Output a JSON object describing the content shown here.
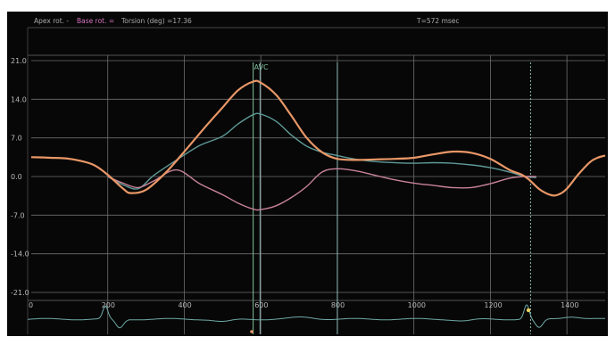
{
  "header": {
    "apex_label": "Apex rot. -",
    "base_label": "Base rot. =",
    "torsion_label": "Torsion (deg) =17.36",
    "time_label": "T=572 msec"
  },
  "colors": {
    "background": "#070707",
    "grid": "#6e6e6e",
    "torsion": "#e99767",
    "apex": "#5e9a98",
    "base": "#c8829a",
    "ecg": "#6fa9a6",
    "marker_avc": "#7fbf9a",
    "marker_cursor": "#8fb8b5",
    "axis_text": "#b9b9b9",
    "base_label": "#d874bf",
    "ecg_dot": "#e8d15a"
  },
  "chart_data": {
    "type": "line",
    "title": "",
    "xlabel": "",
    "ylabel": "",
    "xlim": [
      0,
      1500
    ],
    "ylim": [
      -21.0,
      21.0
    ],
    "x_ticks": [
      200,
      400,
      600,
      800,
      1000,
      1200,
      1400
    ],
    "x_tick_labels": [
      "200",
      "400",
      "600",
      "800",
      "1000",
      "1200",
      "1400"
    ],
    "x_tick_left_label": "0",
    "y_ticks": [
      21.0,
      14.0,
      7.0,
      0.0,
      -7.0,
      -14.0,
      -21.0
    ],
    "y_tick_labels": [
      "21.0",
      "14.0",
      "7.0",
      "0.0",
      "-7.0",
      "-14.0",
      "-21.0"
    ],
    "grid": true,
    "vertical_markers": [
      {
        "x": 580,
        "label": "AVC",
        "style": "solid"
      },
      {
        "x": 598,
        "label": "",
        "style": "solid"
      },
      {
        "x": 800,
        "label": "",
        "style": "solid"
      },
      {
        "x": 1305,
        "label": "",
        "style": "dotted"
      }
    ],
    "series": [
      {
        "name": "Torsion",
        "color_key": "torsion",
        "x": [
          0,
          50,
          100,
          160,
          200,
          240,
          260,
          300,
          350,
          400,
          450,
          500,
          540,
          580,
          600,
          640,
          680,
          720,
          760,
          800,
          850,
          900,
          950,
          1000,
          1050,
          1100,
          1150,
          1200,
          1250,
          1280,
          1300,
          1330,
          1360,
          1380,
          1400,
          1430,
          1460,
          1480,
          1500
        ],
        "y": [
          3.5,
          3.4,
          3.2,
          2.2,
          0.3,
          -2.2,
          -3.0,
          -2.4,
          0.6,
          4.5,
          8.6,
          12.5,
          15.6,
          17.2,
          17.0,
          14.8,
          11.0,
          7.0,
          4.4,
          3.2,
          3.0,
          3.1,
          3.2,
          3.4,
          4.0,
          4.5,
          4.3,
          3.2,
          1.2,
          0.4,
          -0.5,
          -2.4,
          -3.4,
          -3.2,
          -2.2,
          0.4,
          2.6,
          3.4,
          3.8
        ]
      },
      {
        "name": "Apex rot.",
        "color_key": "apex",
        "x": [
          200,
          240,
          280,
          320,
          380,
          440,
          500,
          540,
          580,
          600,
          640,
          680,
          720,
          760,
          800,
          850,
          900,
          950,
          1000,
          1050,
          1100,
          1150,
          1200,
          1250,
          1290,
          1320
        ],
        "y": [
          0.0,
          -1.5,
          -2.2,
          0.2,
          3.0,
          5.6,
          7.3,
          9.5,
          11.2,
          11.3,
          10.0,
          7.5,
          5.5,
          4.4,
          3.8,
          3.1,
          2.7,
          2.5,
          2.4,
          2.5,
          2.4,
          2.1,
          1.6,
          0.8,
          0.0,
          -0.2
        ]
      },
      {
        "name": "Base rot.",
        "color_key": "base",
        "x": [
          200,
          240,
          280,
          320,
          380,
          440,
          500,
          540,
          580,
          600,
          640,
          680,
          720,
          760,
          800,
          850,
          900,
          950,
          1000,
          1050,
          1100,
          1150,
          1200,
          1250,
          1290,
          1320
        ],
        "y": [
          0.0,
          -1.2,
          -2.0,
          -0.8,
          1.2,
          -1.3,
          -3.3,
          -4.8,
          -5.9,
          -6.0,
          -5.3,
          -3.8,
          -1.8,
          0.8,
          1.4,
          1.0,
          0.2,
          -0.6,
          -1.2,
          -1.6,
          -2.0,
          -2.0,
          -1.3,
          -0.3,
          0.0,
          0.0
        ]
      }
    ]
  }
}
